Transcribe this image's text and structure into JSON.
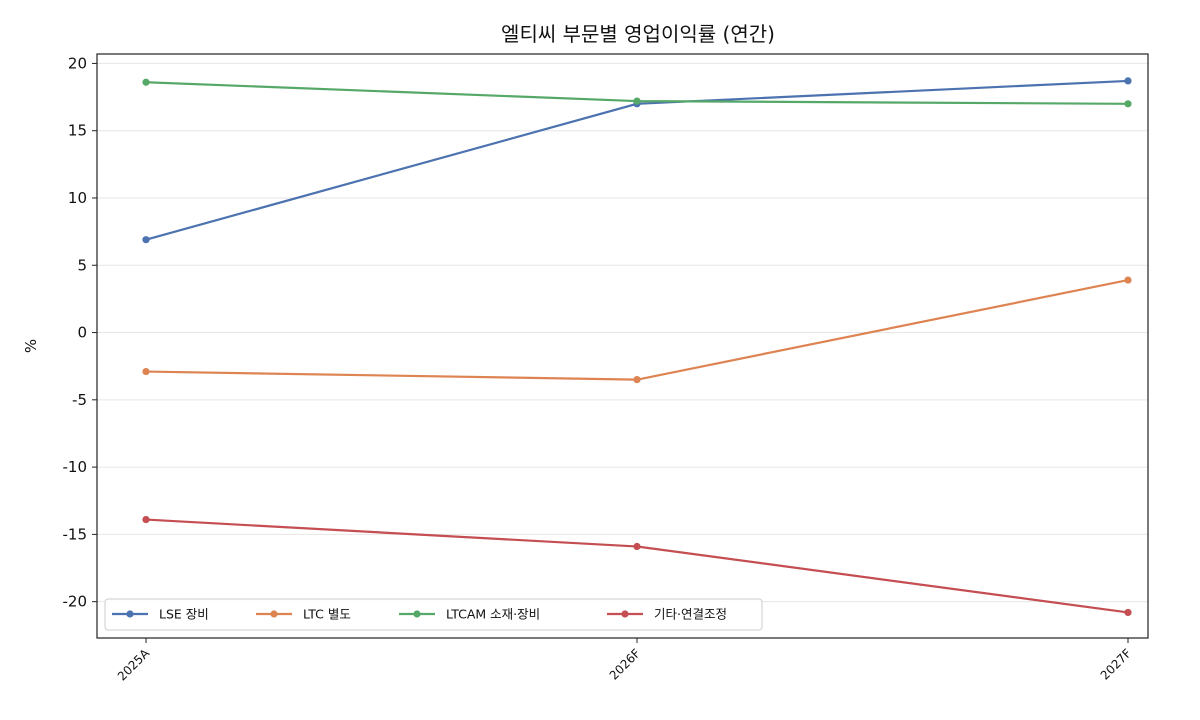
{
  "chart_data": {
    "type": "line",
    "title": "엘티씨 부문별 영업이익률 (연간)",
    "xlabel": "",
    "ylabel": "%",
    "categories": [
      "2025A",
      "2026F",
      "2027F"
    ],
    "ylim": [
      -22.7,
      20.7
    ],
    "yticks": [
      20,
      15,
      10,
      5,
      0,
      -5,
      -10,
      -15,
      -20
    ],
    "ytick_labels": [
      "20",
      "15",
      "10",
      "5",
      "0",
      "-5",
      "-10",
      "-15",
      "-20"
    ],
    "grid": "horizontal",
    "legend_position": "bottom-left",
    "series": [
      {
        "name": "LSE 장비",
        "color": "#4c72b0",
        "values": [
          6.9,
          17.0,
          18.7
        ]
      },
      {
        "name": "LTC 별도",
        "color": "#dd8452",
        "values": [
          -2.9,
          -3.5,
          3.9
        ]
      },
      {
        "name": "LTCAM 소재·장비",
        "color": "#55a868",
        "values": [
          18.6,
          17.2,
          17.0
        ]
      },
      {
        "name": "기타·연결조정",
        "color": "#c44e52",
        "values": [
          -13.9,
          -15.9,
          -20.8
        ]
      }
    ]
  }
}
